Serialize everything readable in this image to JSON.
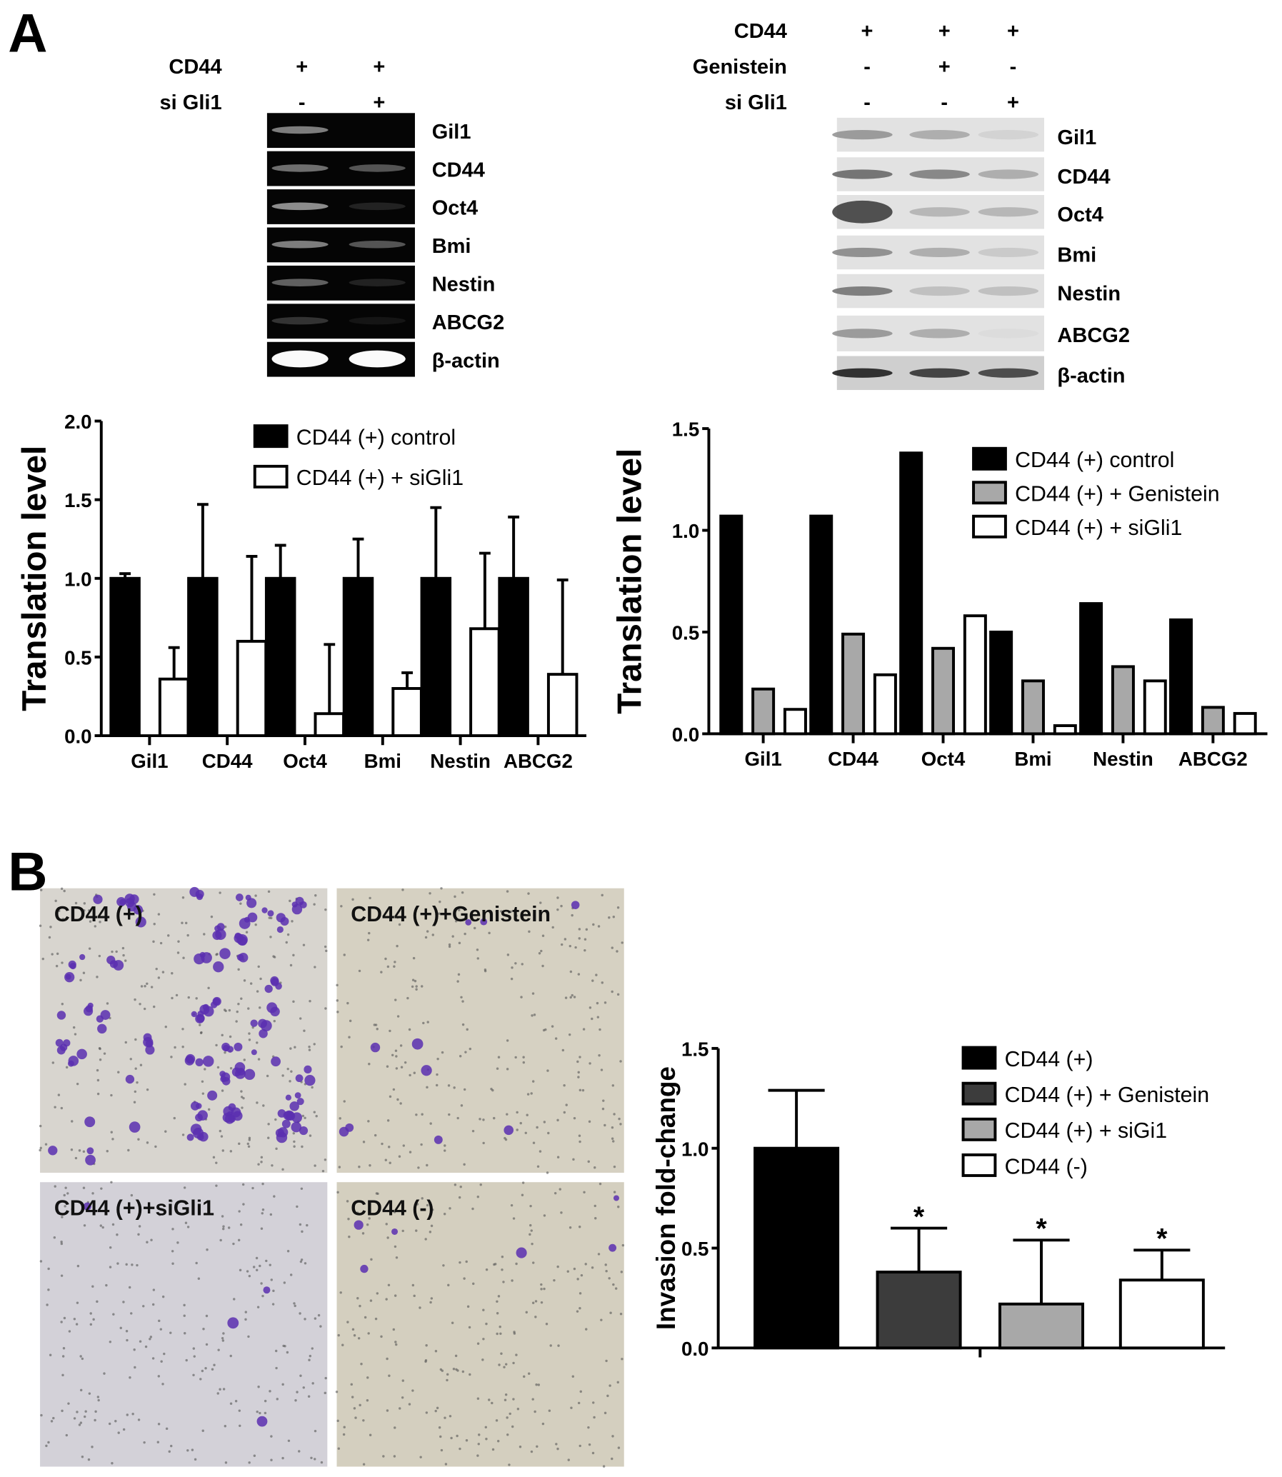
{
  "panels": {
    "a": "A",
    "b": "B"
  },
  "blot_left": {
    "conditions": [
      {
        "label": "CD44",
        "values": [
          "+",
          "+"
        ]
      },
      {
        "label": "si Gli1",
        "values": [
          "-",
          "+"
        ]
      }
    ],
    "rows": [
      "Gil1",
      "CD44",
      "Oct4",
      "Bmi",
      "Nestin",
      "ABCG2",
      "β-actin"
    ]
  },
  "blot_right": {
    "conditions": [
      {
        "label": "CD44",
        "values": [
          "+",
          "+",
          "+"
        ]
      },
      {
        "label": "Genistein",
        "values": [
          "-",
          "+",
          "-"
        ]
      },
      {
        "label": "si Gli1",
        "values": [
          "-",
          "-",
          "+"
        ]
      }
    ],
    "rows": [
      "Gil1",
      "CD44",
      "Oct4",
      "Bmi",
      "Nestin",
      "ABCG2",
      "β-actin"
    ]
  },
  "micrographs": [
    "CD44 (+)",
    "CD44 (+)+Genistein",
    "CD44 (+)+siGli1",
    "CD44 (-)"
  ],
  "colors": {
    "black": "#000000",
    "dark_gray": "#3c3c3c",
    "gray": "#a8a8a8",
    "white": "#ffffff",
    "micrograph_bg": "#d9d4c4",
    "stain": "#5a2fb0"
  },
  "chart_data": [
    {
      "type": "bar",
      "ylabel": "Translation level",
      "ylim": [
        0,
        2.0
      ],
      "yticks": [
        "0.0",
        "0.5",
        "1.0",
        "1.5",
        "2.0"
      ],
      "categories": [
        "Gil1",
        "CD44",
        "Oct4",
        "Bmi",
        "Nestin",
        "ABCG2"
      ],
      "legend_position": "top-right",
      "series": [
        {
          "name": "CD44 (+)  control",
          "color": "#000000",
          "values": [
            1.0,
            1.0,
            1.0,
            1.0,
            1.0,
            1.0
          ],
          "error_upper": [
            1.03,
            1.47,
            1.21,
            1.25,
            1.45,
            1.39
          ]
        },
        {
          "name": "CD44 (+) + siGli1",
          "color": "#ffffff",
          "values": [
            0.36,
            0.6,
            0.14,
            0.3,
            0.68,
            0.39
          ],
          "error_upper": [
            0.56,
            1.14,
            0.58,
            0.4,
            1.16,
            0.99
          ]
        }
      ]
    },
    {
      "type": "bar",
      "ylabel": "Translation level",
      "ylim": [
        0,
        1.5
      ],
      "yticks": [
        "0.0",
        "0.5",
        "1.0",
        "1.5"
      ],
      "categories": [
        "Gil1",
        "CD44",
        "Oct4",
        "Bmi",
        "Nestin",
        "ABCG2"
      ],
      "legend_position": "top-right",
      "series": [
        {
          "name": "CD44 (+)  control",
          "color": "#000000",
          "values": [
            1.07,
            1.07,
            1.38,
            0.5,
            0.64,
            0.56
          ]
        },
        {
          "name": "CD44 (+) + Genistein",
          "color": "#a8a8a8",
          "values": [
            0.22,
            0.49,
            0.42,
            0.26,
            0.33,
            0.13
          ]
        },
        {
          "name": "CD44 (+) + siGli1",
          "color": "#ffffff",
          "values": [
            0.12,
            0.29,
            0.58,
            0.04,
            0.26,
            0.1
          ]
        }
      ]
    },
    {
      "type": "bar",
      "ylabel": "Invasion fold-change",
      "ylim": [
        0,
        1.5
      ],
      "yticks": [
        "0.0",
        "0.5",
        "1.0",
        "1.5"
      ],
      "legend_position": "top-right",
      "series": [
        {
          "name": "CD44 (+)",
          "color": "#000000",
          "value": 1.0,
          "error_upper": 1.29,
          "annotation": ""
        },
        {
          "name": "CD44 (+) + Genistein",
          "color": "#3c3c3c",
          "value": 0.38,
          "error_upper": 0.6,
          "annotation": "*"
        },
        {
          "name": "CD44 (+) + siGi1",
          "color": "#a8a8a8",
          "value": 0.22,
          "error_upper": 0.54,
          "annotation": "*"
        },
        {
          "name": "CD44 (-)",
          "color": "#ffffff",
          "value": 0.34,
          "error_upper": 0.49,
          "annotation": "*"
        }
      ]
    }
  ]
}
